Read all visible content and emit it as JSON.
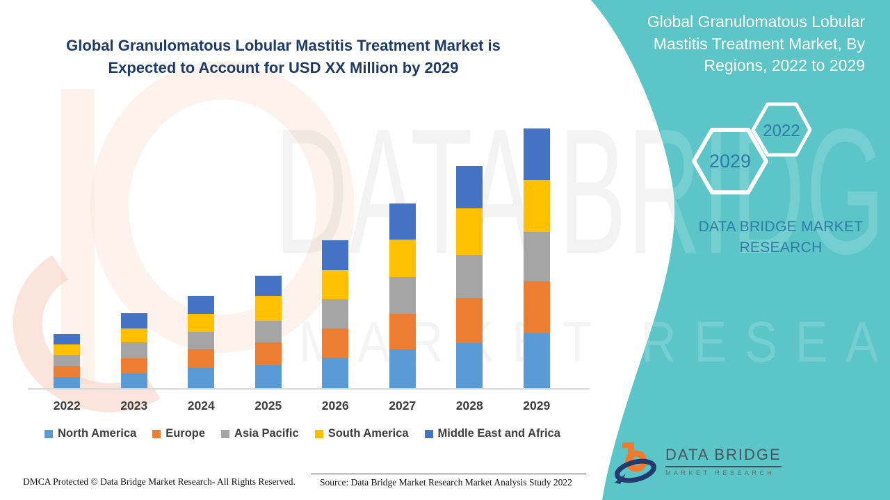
{
  "header": {
    "title_line1": "Global Granulomatous Lobular Mastitis Treatment Market is",
    "title_line2": "Expected to Account for USD XX Million by 2029"
  },
  "panel": {
    "title_line1": "Global Granulomatous Lobular",
    "title_line2": "Mastitis Treatment Market, By",
    "title_line3": "Regions, 2022 to 2029",
    "hex_small_label": "2022",
    "hex_large_label": "2029",
    "brand_line1": "DATA BRIDGE MARKET",
    "brand_line2": "RESEARCH"
  },
  "chart_data": {
    "type": "bar",
    "stacked": true,
    "title": "Global Granulomatous Lobular Mastitis Treatment Market is Expected to Account for USD XX Million by 2029",
    "subtitle": "Global Granulomatous Lobular Mastitis Treatment Market, By Regions, 2022 to 2029",
    "categories": [
      "2022",
      "2023",
      "2024",
      "2025",
      "2026",
      "2027",
      "2028",
      "2029"
    ],
    "series": [
      {
        "name": "North America",
        "color": "#5B9BD5",
        "values": [
          16,
          21,
          29,
          33,
          44,
          56,
          65,
          79
        ]
      },
      {
        "name": "Europe",
        "color": "#ED7D31",
        "values": [
          16,
          22,
          27,
          33,
          42,
          51,
          65,
          75
        ]
      },
      {
        "name": "Asia Pacific",
        "color": "#A5A5A5",
        "values": [
          16,
          23,
          25,
          31,
          42,
          53,
          62,
          71
        ]
      },
      {
        "name": "South America",
        "color": "#FFC000",
        "values": [
          15,
          20,
          26,
          36,
          42,
          54,
          67,
          75
        ]
      },
      {
        "name": "Middle East and Africa",
        "color": "#4472C4",
        "values": [
          15,
          22,
          26,
          29,
          43,
          52,
          61,
          74
        ]
      }
    ],
    "totals": [
      78,
      108,
      133,
      162,
      213,
      266,
      320,
      374
    ],
    "xlabel": "",
    "ylabel": "",
    "value_units": "relative height units; y-axis unlabeled (values shown as USD XX Million)",
    "legend_position": "bottom",
    "grid": false
  },
  "footer": {
    "dmca": "DMCA Protected © Data Bridge Market Research- All Rights Reserved.",
    "source": "Source: Data Bridge Market Research Market Analysis Study 2022"
  },
  "logo": {
    "name": "DATA BRIDGE",
    "subtitle": "MARKET RESEARCH"
  },
  "watermark": {
    "line1": "DATA BRIDGE",
    "line2": "MARKET RESEARCH"
  },
  "colors": {
    "panel_teal": "#5bc5c7",
    "title_navy": "#1e3a68",
    "accent_blue": "#2f7ba6",
    "hex_stroke_white": "#ffffff",
    "logo_orange": "#f4792b",
    "logo_navy": "#223a70",
    "axis_text": "#3d3d3d"
  }
}
